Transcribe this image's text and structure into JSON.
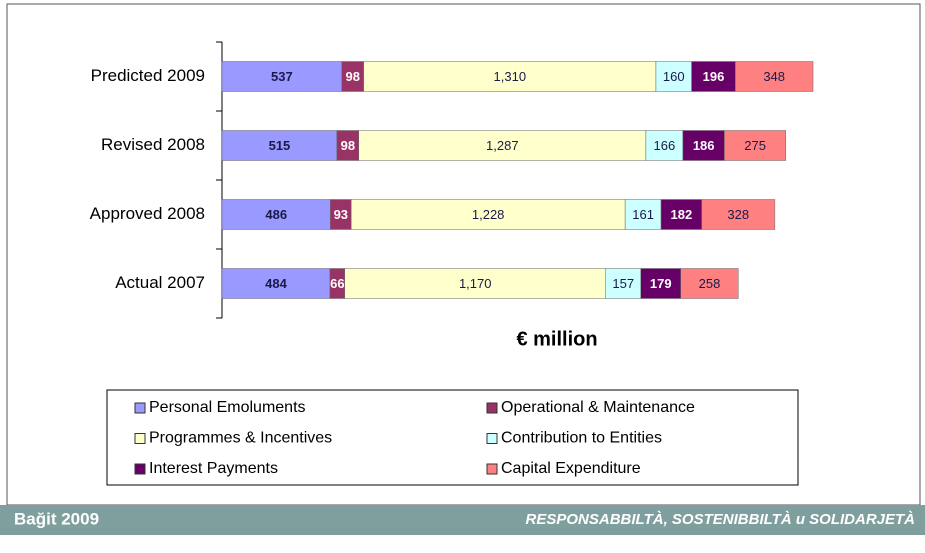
{
  "chart_data": {
    "type": "stacked-barh",
    "x_label": "€ million",
    "categories": [
      "Predicted 2009",
      "Revised 2008",
      "Approved 2008",
      "Actual 2007"
    ],
    "series": [
      {
        "name": "Personal Emoluments",
        "color": "#9999ff",
        "values": [
          537,
          515,
          486,
          484
        ]
      },
      {
        "name": "Operational & Maintenance",
        "color": "#993366",
        "values": [
          98,
          98,
          93,
          66
        ]
      },
      {
        "name": "Programmes & Incentives",
        "color": "#ffffcc",
        "values": [
          1310,
          1287,
          1228,
          1170
        ],
        "value_labels": [
          "1,310",
          "1,287",
          "1,228",
          "1,170"
        ]
      },
      {
        "name": "Contribution to Entities",
        "color": "#ccffff",
        "values": [
          160,
          166,
          161,
          157
        ]
      },
      {
        "name": "Interest Payments",
        "color": "#660066",
        "values": [
          196,
          186,
          182,
          179
        ]
      },
      {
        "name": "Capital Expenditure",
        "color": "#ff8080",
        "values": [
          348,
          275,
          328,
          258
        ]
      }
    ]
  },
  "footer": {
    "left": "Bağit 2009",
    "right": "RESPONSABBILTÀ, SOSTENIBBILTÀ u SOLIDARJETÀ"
  }
}
